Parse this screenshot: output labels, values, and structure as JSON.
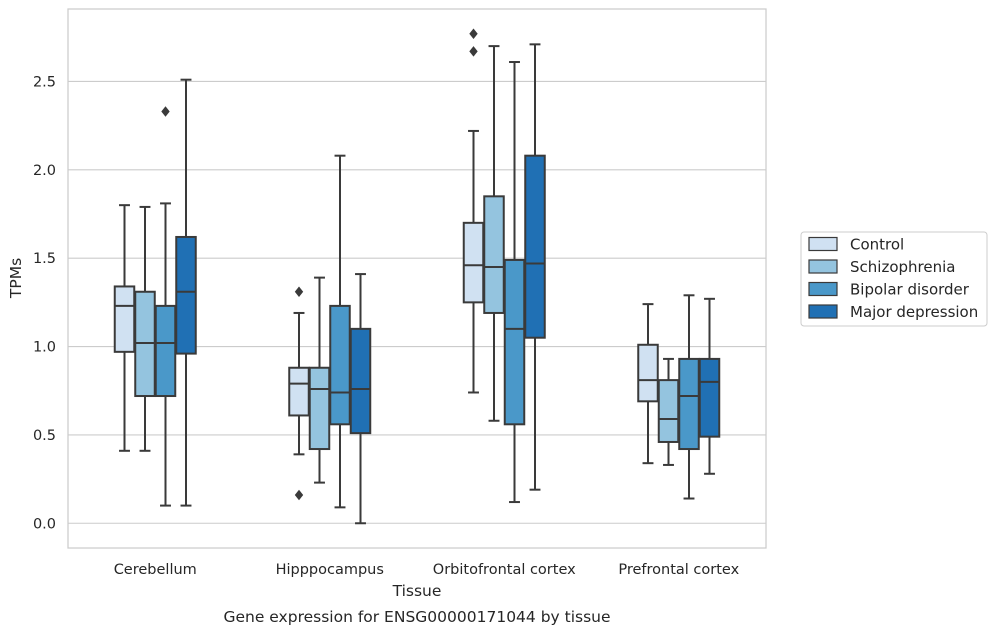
{
  "chart_data": {
    "type": "box",
    "title": "",
    "caption": "Gene expression for ENSG00000171044 by tissue",
    "xlabel": "Tissue",
    "ylabel": "TPMs",
    "ylim": [
      -0.14,
      2.91
    ],
    "yticks": [
      0.0,
      0.5,
      1.0,
      1.5,
      2.0,
      2.5
    ],
    "ytick_labels": [
      "0.0",
      "0.5",
      "1.0",
      "1.5",
      "2.0",
      "2.5"
    ],
    "grid": "horizontal",
    "legend_position": "right",
    "categories": [
      "Cerebellum",
      "Hipppocampus",
      "Orbitofrontal cortex",
      "Prefrontal cortex"
    ],
    "series": [
      {
        "name": "Control",
        "color": "#d0e1f2",
        "boxes": [
          {
            "whisker_low": 0.41,
            "q1": 0.97,
            "median": 1.23,
            "q3": 1.34,
            "whisker_high": 1.8,
            "outliers": []
          },
          {
            "whisker_low": 0.39,
            "q1": 0.61,
            "median": 0.79,
            "q3": 0.88,
            "whisker_high": 1.19,
            "outliers": [
              0.16,
              1.31
            ]
          },
          {
            "whisker_low": 0.74,
            "q1": 1.25,
            "median": 1.46,
            "q3": 1.7,
            "whisker_high": 2.22,
            "outliers": [
              2.67,
              2.77
            ]
          },
          {
            "whisker_low": 0.34,
            "q1": 0.69,
            "median": 0.81,
            "q3": 1.01,
            "whisker_high": 1.24,
            "outliers": []
          }
        ]
      },
      {
        "name": "Schizophrenia",
        "color": "#94c4df",
        "boxes": [
          {
            "whisker_low": 0.41,
            "q1": 0.72,
            "median": 1.02,
            "q3": 1.31,
            "whisker_high": 1.79,
            "outliers": []
          },
          {
            "whisker_low": 0.23,
            "q1": 0.42,
            "median": 0.76,
            "q3": 0.88,
            "whisker_high": 1.39,
            "outliers": []
          },
          {
            "whisker_low": 0.58,
            "q1": 1.19,
            "median": 1.45,
            "q3": 1.85,
            "whisker_high": 2.7,
            "outliers": []
          },
          {
            "whisker_low": 0.33,
            "q1": 0.46,
            "median": 0.59,
            "q3": 0.81,
            "whisker_high": 0.93,
            "outliers": []
          }
        ]
      },
      {
        "name": "Bipolar disorder",
        "color": "#4a98c9",
        "boxes": [
          {
            "whisker_low": 0.1,
            "q1": 0.72,
            "median": 1.02,
            "q3": 1.23,
            "whisker_high": 1.81,
            "outliers": [
              2.33
            ]
          },
          {
            "whisker_low": 0.09,
            "q1": 0.56,
            "median": 0.74,
            "q3": 1.23,
            "whisker_high": 2.08,
            "outliers": []
          },
          {
            "whisker_low": 0.12,
            "q1": 0.56,
            "median": 1.1,
            "q3": 1.49,
            "whisker_high": 2.61,
            "outliers": []
          },
          {
            "whisker_low": 0.14,
            "q1": 0.42,
            "median": 0.72,
            "q3": 0.93,
            "whisker_high": 1.29,
            "outliers": []
          }
        ]
      },
      {
        "name": "Major depression",
        "color": "#2070b4",
        "boxes": [
          {
            "whisker_low": 0.1,
            "q1": 0.96,
            "median": 1.31,
            "q3": 1.62,
            "whisker_high": 2.51,
            "outliers": []
          },
          {
            "whisker_low": 0.0,
            "q1": 0.51,
            "median": 0.76,
            "q3": 1.1,
            "whisker_high": 1.41,
            "outliers": []
          },
          {
            "whisker_low": 0.19,
            "q1": 1.05,
            "median": 1.47,
            "q3": 2.08,
            "whisker_high": 2.71,
            "outliers": []
          },
          {
            "whisker_low": 0.28,
            "q1": 0.49,
            "median": 0.8,
            "q3": 0.93,
            "whisker_high": 1.27,
            "outliers": []
          }
        ]
      }
    ]
  }
}
